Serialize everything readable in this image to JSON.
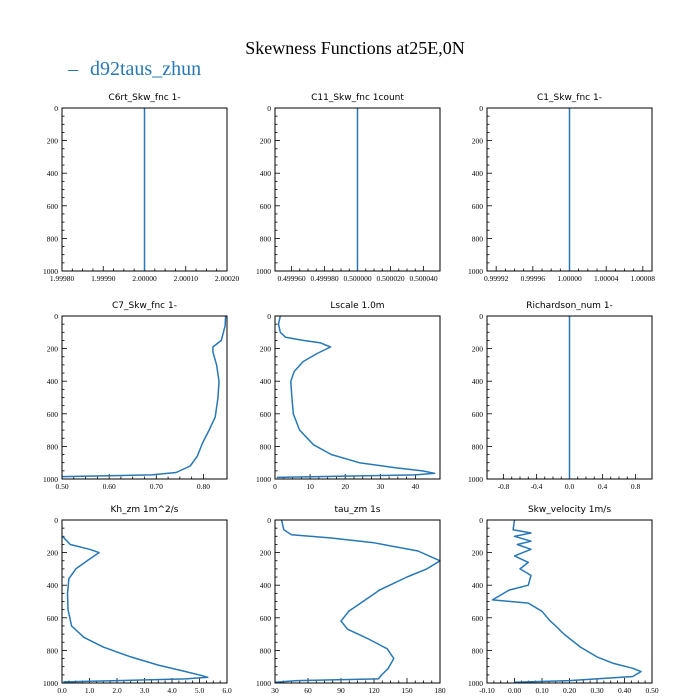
{
  "title": "Skewness Functions at25E,0N",
  "legend": {
    "label": "d92taus_zhun",
    "color": "#2878b5"
  },
  "series_color": "#2878b5",
  "chart_data": [
    {
      "type": "line",
      "title": "C6rt_Skw_fnc   1-",
      "xlim": [
        1.9998,
        2.0002
      ],
      "ylim": [
        1000,
        0
      ],
      "xticks": [
        1.9998,
        1.9999,
        2.0,
        2.0001,
        2.0002
      ],
      "xticklabels": [
        "1.99980",
        "1.99990",
        "2.00000",
        "2.00010",
        "2.00020"
      ],
      "yticks": [
        0,
        200,
        400,
        600,
        800,
        1000
      ],
      "yticklabels": [
        "0",
        "200",
        "400",
        "600",
        "800",
        "1000"
      ],
      "series": [
        {
          "points": [
            [
              2.0,
              0
            ],
            [
              2.0,
              1000
            ]
          ]
        }
      ]
    },
    {
      "type": "line",
      "title": "C11_Skw_fnc   1count",
      "xlim": [
        0.49995,
        0.50005
      ],
      "ylim": [
        1000,
        0
      ],
      "xticks": [
        0.49996,
        0.49998,
        0.5,
        0.50002,
        0.50004
      ],
      "xticklabels": [
        "0.499960",
        "0.499980",
        "0.500000",
        "0.500020",
        "0.500040"
      ],
      "yticks": [
        0,
        200,
        400,
        600,
        800,
        1000
      ],
      "yticklabels": [
        "0",
        "200",
        "400",
        "600",
        "800",
        "1000"
      ],
      "series": [
        {
          "points": [
            [
              0.5,
              0
            ],
            [
              0.5,
              1000
            ]
          ]
        }
      ]
    },
    {
      "type": "line",
      "title": "C1_Skw_fnc   1-",
      "xlim": [
        0.99991,
        1.00009
      ],
      "ylim": [
        1000,
        0
      ],
      "xticks": [
        0.99992,
        0.99996,
        1.0,
        1.00004,
        1.00008
      ],
      "xticklabels": [
        "0.99992",
        "0.99996",
        "1.00000",
        "1.00004",
        "1.00008"
      ],
      "yticks": [
        0,
        200,
        400,
        600,
        800,
        1000
      ],
      "yticklabels": [
        "0",
        "200",
        "400",
        "600",
        "800",
        "1000"
      ],
      "series": [
        {
          "points": [
            [
              1.0,
              0
            ],
            [
              1.0,
              1000
            ]
          ]
        }
      ]
    },
    {
      "type": "line",
      "title": "C7_Skw_fnc   1-",
      "xlim": [
        0.5,
        0.85
      ],
      "ylim": [
        1000,
        0
      ],
      "xticks": [
        0.5,
        0.6,
        0.7,
        0.8
      ],
      "xticklabels": [
        "0.50",
        "0.60",
        "0.70",
        "0.80"
      ],
      "yticks": [
        0,
        200,
        400,
        600,
        800,
        1000
      ],
      "yticklabels": [
        "0",
        "200",
        "400",
        "600",
        "800",
        "1000"
      ],
      "series": [
        {
          "points": [
            [
              0.847,
              0
            ],
            [
              0.846,
              60
            ],
            [
              0.838,
              150
            ],
            [
              0.82,
              190
            ],
            [
              0.82,
              220
            ],
            [
              0.828,
              300
            ],
            [
              0.833,
              400
            ],
            [
              0.831,
              500
            ],
            [
              0.825,
              620
            ],
            [
              0.812,
              700
            ],
            [
              0.798,
              780
            ],
            [
              0.787,
              860
            ],
            [
              0.772,
              920
            ],
            [
              0.742,
              960
            ],
            [
              0.69,
              975
            ],
            [
              0.5,
              985
            ]
          ]
        }
      ]
    },
    {
      "type": "line",
      "title": "Lscale   1.0m",
      "xlim": [
        0,
        47
      ],
      "ylim": [
        1000,
        0
      ],
      "xticks": [
        0,
        10,
        20,
        30,
        40
      ],
      "xticklabels": [
        "0",
        "10",
        "20",
        "30",
        "40"
      ],
      "yticks": [
        0,
        200,
        400,
        600,
        800,
        1000
      ],
      "yticklabels": [
        "0",
        "200",
        "400",
        "600",
        "800",
        "1000"
      ],
      "series": [
        {
          "points": [
            [
              1.5,
              0
            ],
            [
              1.0,
              50
            ],
            [
              1.5,
              100
            ],
            [
              3.0,
              130
            ],
            [
              8.0,
              150
            ],
            [
              13.0,
              165
            ],
            [
              15.8,
              190
            ],
            [
              12.0,
              230
            ],
            [
              8.0,
              280
            ],
            [
              5.5,
              340
            ],
            [
              4.5,
              400
            ],
            [
              4.8,
              500
            ],
            [
              5.2,
              600
            ],
            [
              7.0,
              700
            ],
            [
              11.0,
              790
            ],
            [
              16.0,
              850
            ],
            [
              24.0,
              900
            ],
            [
              34.0,
              930
            ],
            [
              42.0,
              950
            ],
            [
              45.5,
              965
            ],
            [
              40.0,
              975
            ],
            [
              20.0,
              982
            ],
            [
              0.5,
              990
            ]
          ]
        }
      ]
    },
    {
      "type": "line",
      "title": "Richardson_num   1-",
      "xlim": [
        -1,
        1
      ],
      "ylim": [
        1000,
        0
      ],
      "xticks": [
        -0.8,
        -0.4,
        0.0,
        0.4,
        0.8
      ],
      "xticklabels": [
        "-0.8",
        "-0.4",
        "0.0",
        "0.4",
        "0.8"
      ],
      "yticks": [
        0,
        200,
        400,
        600,
        800,
        1000
      ],
      "yticklabels": [
        "0",
        "200",
        "400",
        "600",
        "800",
        "1000"
      ],
      "series": [
        {
          "points": [
            [
              0.0,
              0
            ],
            [
              0.0,
              1000
            ]
          ]
        }
      ]
    },
    {
      "type": "line",
      "title": "Kh_zm   1m^2/s",
      "xlim": [
        0,
        6
      ],
      "ylim": [
        1000,
        0
      ],
      "xticks": [
        0,
        1,
        2,
        3,
        4,
        5,
        6
      ],
      "xticklabels": [
        "0.0",
        "1.0",
        "2.0",
        "3.0",
        "4.0",
        "5.0",
        "6.0"
      ],
      "yticks": [
        0,
        200,
        400,
        600,
        800,
        1000
      ],
      "yticklabels": [
        "0",
        "200",
        "400",
        "600",
        "800",
        "1000"
      ],
      "series": [
        {
          "points": [
            [
              0.02,
              100
            ],
            [
              0.3,
              150
            ],
            [
              1.0,
              180
            ],
            [
              1.35,
              200
            ],
            [
              1.0,
              240
            ],
            [
              0.5,
              300
            ],
            [
              0.25,
              360
            ],
            [
              0.2,
              450
            ],
            [
              0.22,
              550
            ],
            [
              0.35,
              650
            ],
            [
              0.8,
              720
            ],
            [
              1.5,
              780
            ],
            [
              2.5,
              840
            ],
            [
              3.5,
              890
            ],
            [
              4.5,
              930
            ],
            [
              5.1,
              955
            ],
            [
              5.3,
              965
            ],
            [
              4.5,
              975
            ],
            [
              2.0,
              985
            ],
            [
              0.05,
              993
            ]
          ]
        }
      ]
    },
    {
      "type": "line",
      "title": "tau_zm   1s",
      "xlim": [
        30,
        180
      ],
      "ylim": [
        1000,
        0
      ],
      "xticks": [
        30,
        60,
        90,
        120,
        150,
        180
      ],
      "xticklabels": [
        "30",
        "60",
        "90",
        "120",
        "150",
        "180"
      ],
      "yticks": [
        0,
        200,
        400,
        600,
        800,
        1000
      ],
      "yticklabels": [
        "0",
        "200",
        "400",
        "600",
        "800",
        "1000"
      ],
      "series": [
        {
          "points": [
            [
              36,
              0
            ],
            [
              38,
              60
            ],
            [
              45,
              90
            ],
            [
              80,
              110
            ],
            [
              120,
              140
            ],
            [
              160,
              190
            ],
            [
              180,
              250
            ],
            [
              168,
              300
            ],
            [
              150,
              350
            ],
            [
              125,
              430
            ],
            [
              110,
              500
            ],
            [
              97,
              560
            ],
            [
              90,
              620
            ],
            [
              96,
              670
            ],
            [
              115,
              730
            ],
            [
              132,
              790
            ],
            [
              138,
              850
            ],
            [
              133,
              910
            ],
            [
              127,
              950
            ],
            [
              124,
              975
            ],
            [
              50,
              985
            ],
            [
              30,
              995
            ]
          ]
        }
      ]
    },
    {
      "type": "line",
      "title": "Skw_velocity   1m/s",
      "xlim": [
        -0.1,
        0.5
      ],
      "ylim": [
        1000,
        0
      ],
      "xticks": [
        -0.1,
        0.0,
        0.1,
        0.2,
        0.3,
        0.4,
        0.5
      ],
      "xticklabels": [
        "-0.10",
        "0.00",
        "0.10",
        "0.20",
        "0.30",
        "0.40",
        "0.50"
      ],
      "yticks": [
        0,
        200,
        400,
        600,
        800,
        1000
      ],
      "yticklabels": [
        "0",
        "200",
        "400",
        "600",
        "800",
        "1000"
      ],
      "series": [
        {
          "points": [
            [
              0.0,
              0
            ],
            [
              -0.005,
              60
            ],
            [
              0.06,
              80
            ],
            [
              0.0,
              100
            ],
            [
              0.06,
              130
            ],
            [
              0.01,
              150
            ],
            [
              0.06,
              180
            ],
            [
              0.0,
              220
            ],
            [
              0.05,
              260
            ],
            [
              0.02,
              300
            ],
            [
              0.06,
              340
            ],
            [
              0.05,
              400
            ],
            [
              -0.02,
              430
            ],
            [
              -0.05,
              460
            ],
            [
              -0.08,
              490
            ],
            [
              0.05,
              510
            ],
            [
              0.1,
              560
            ],
            [
              0.13,
              620
            ],
            [
              0.15,
              650
            ],
            [
              0.18,
              700
            ],
            [
              0.24,
              780
            ],
            [
              0.3,
              840
            ],
            [
              0.36,
              880
            ],
            [
              0.43,
              910
            ],
            [
              0.46,
              930
            ],
            [
              0.43,
              960
            ],
            [
              0.2,
              985
            ],
            [
              0.0,
              995
            ]
          ]
        }
      ]
    }
  ]
}
